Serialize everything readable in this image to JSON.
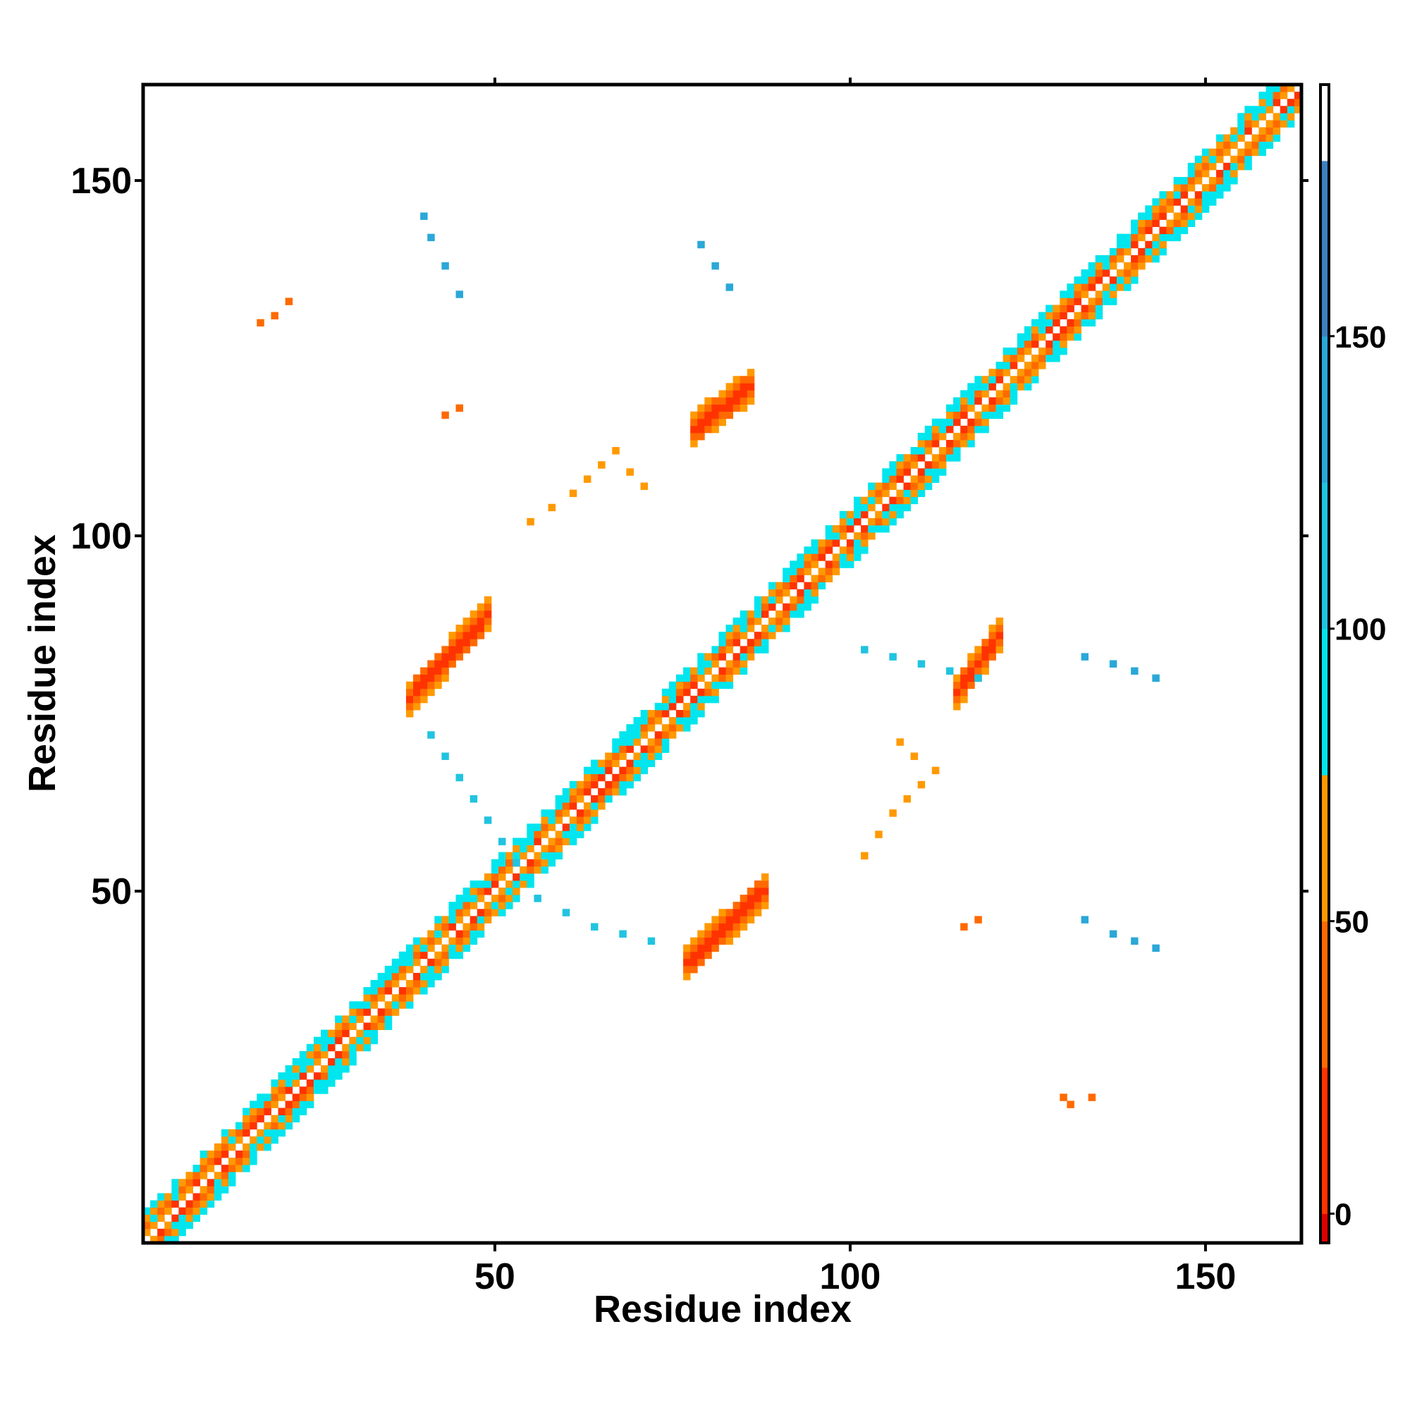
{
  "chart_data": {
    "type": "heatmap",
    "title": "",
    "xlabel": "Residue index",
    "ylabel": "Residue index",
    "xlim": [
      1,
      163
    ],
    "ylim": [
      1,
      163
    ],
    "xticks": [
      50,
      100,
      150
    ],
    "yticks": [
      50,
      100,
      150
    ],
    "grid": false,
    "legend": "right",
    "colorbar": {
      "ticks": [
        0,
        50,
        100,
        150
      ],
      "range": [
        -5,
        193
      ],
      "segments": [
        {
          "from": -5,
          "to": 0,
          "color": "#e00000"
        },
        {
          "from": 0,
          "to": 25,
          "color": "#ff3300"
        },
        {
          "from": 25,
          "to": 50,
          "color": "#ff6a00"
        },
        {
          "from": 50,
          "to": 75,
          "color": "#ff9900"
        },
        {
          "from": 75,
          "to": 100,
          "color": "#00e5ee"
        },
        {
          "from": 100,
          "to": 125,
          "color": "#20c4e0"
        },
        {
          "from": 125,
          "to": 150,
          "color": "#2aa8d8"
        },
        {
          "from": 150,
          "to": 180,
          "color": "#3d80c0"
        },
        {
          "from": 180,
          "to": 193,
          "color": "#ffffff"
        }
      ]
    },
    "features": [
      {
        "kind": "diagonal_band",
        "x_range": [
          1,
          163
        ],
        "half_width": 4
      },
      {
        "kind": "patch",
        "x": [
          38,
          49
        ],
        "y": [
          77,
          89
        ],
        "value": 10
      },
      {
        "kind": "patch",
        "x": [
          77,
          88
        ],
        "y": [
          40,
          50
        ],
        "value": 10
      },
      {
        "kind": "patch",
        "x": [
          78,
          86
        ],
        "y": [
          115,
          121
        ],
        "value": 10
      },
      {
        "kind": "patch",
        "x": [
          115,
          121
        ],
        "y": [
          78,
          86
        ],
        "value": 10
      },
      {
        "kind": "scatter",
        "x": [
          58,
          61,
          63,
          65,
          67,
          69,
          71,
          55
        ],
        "y": [
          104,
          106,
          108,
          110,
          112,
          109,
          107,
          102
        ],
        "value": 60
      },
      {
        "kind": "scatter",
        "x": [
          104,
          106,
          108,
          110,
          112,
          109,
          107,
          102
        ],
        "y": [
          58,
          61,
          63,
          65,
          67,
          69,
          71,
          55
        ],
        "value": 60
      },
      {
        "kind": "scatter",
        "x": [
          40,
          41,
          43,
          45
        ],
        "y": [
          145,
          142,
          138,
          134
        ],
        "value": 140
      },
      {
        "kind": "scatter",
        "x": [
          79,
          81,
          83
        ],
        "y": [
          141,
          138,
          135
        ],
        "value": 140
      },
      {
        "kind": "scatter",
        "x": [
          41,
          43,
          45,
          47,
          49,
          51,
          53
        ],
        "y": [
          72,
          69,
          66,
          63,
          60,
          57,
          54
        ],
        "value": 110
      },
      {
        "kind": "scatter",
        "x": [
          56,
          60,
          64,
          68,
          72
        ],
        "y": [
          49,
          47,
          45,
          44,
          43
        ],
        "value": 110
      },
      {
        "kind": "scatter",
        "x": [
          102,
          106,
          110,
          114,
          118
        ],
        "y": [
          84,
          83,
          82,
          81,
          80
        ],
        "value": 110
      },
      {
        "kind": "scatter",
        "x": [
          133,
          137,
          140,
          143
        ],
        "y": [
          46,
          44,
          43,
          42
        ],
        "value": 130
      },
      {
        "kind": "scatter",
        "x": [
          133,
          137,
          140,
          143
        ],
        "y": [
          83,
          82,
          81,
          80
        ],
        "value": 130
      },
      {
        "kind": "scatter",
        "x": [
          17,
          19,
          21
        ],
        "y": [
          130,
          131,
          133
        ],
        "value": 40
      },
      {
        "kind": "scatter",
        "x": [
          43,
          45
        ],
        "y": [
          117,
          118
        ],
        "value": 40
      },
      {
        "kind": "scatter",
        "x": [
          116,
          118
        ],
        "y": [
          45,
          46
        ],
        "value": 40
      },
      {
        "kind": "scatter",
        "x": [
          130,
          131,
          134
        ],
        "y": [
          21,
          20,
          21
        ],
        "value": 40
      }
    ]
  }
}
